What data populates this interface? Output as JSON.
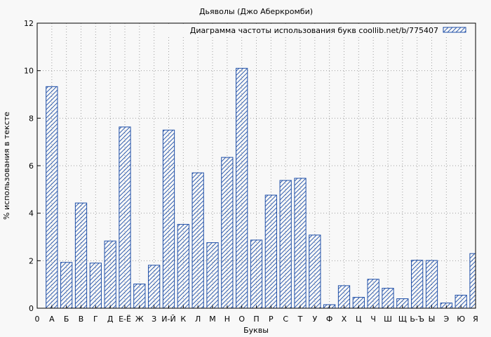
{
  "chart_data": {
    "type": "bar",
    "title": "Дьяволы (Джо Аберкромби)",
    "xlabel": "Буквы",
    "ylabel": "% использования в тексте",
    "legend": "Диаграмма частоты использования букв coollib.net/b/775407",
    "legend_position": "top-right",
    "ylim": [
      0,
      12
    ],
    "yticks": [
      "0",
      "2",
      "4",
      "6",
      "8",
      "10",
      "12"
    ],
    "grid": true,
    "x_start_label": "0",
    "categories": [
      "А",
      "Б",
      "В",
      "Г",
      "Д",
      "Е-Ё",
      "Ж",
      "З",
      "И-Й",
      "К",
      "Л",
      "М",
      "Н",
      "О",
      "П",
      "Р",
      "С",
      "Т",
      "У",
      "Ф",
      "Х",
      "Ц",
      "Ч",
      "Ш",
      "Щ",
      "Ь-Ъ",
      "Ы",
      "Э",
      "Ю",
      "Я"
    ],
    "values": [
      9.33,
      1.93,
      4.43,
      1.9,
      2.83,
      7.63,
      1.02,
      1.81,
      7.5,
      3.53,
      5.7,
      2.76,
      6.35,
      10.1,
      2.87,
      4.76,
      5.38,
      5.47,
      3.08,
      0.15,
      0.95,
      0.46,
      1.22,
      0.84,
      0.4,
      2.02,
      2.01,
      0.22,
      0.55,
      2.3
    ],
    "bar_color": "#2050a8"
  }
}
